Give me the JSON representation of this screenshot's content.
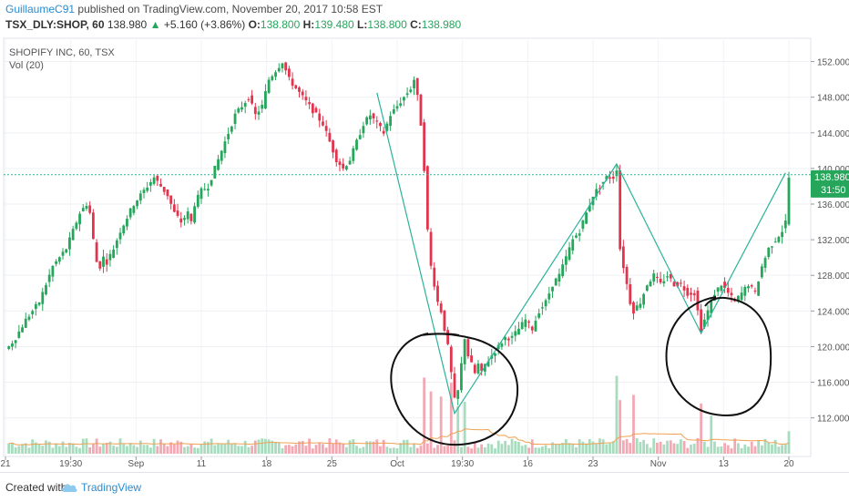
{
  "header": {
    "author": "GuillaumeC91",
    "published": "published on TradingView.com, November 20, 2017 10:58 EST",
    "symbol": "TSX_DLY:SHOP, 60",
    "last": "138.980",
    "change_arrow": "▲",
    "change": "+5.160 (+3.86%)",
    "o_label": "O:",
    "o_value": "138.800",
    "h_label": "H:",
    "h_value": "139.480",
    "l_label": "L:",
    "l_value": "138.800",
    "c_label": "C:",
    "c_value": "138.980"
  },
  "legend": {
    "series": "SHOPIFY INC, 60, TSX",
    "volume": "Vol (20)"
  },
  "price_badge": {
    "price": "138.980",
    "countdown": "31:50"
  },
  "footer": {
    "created_with": "Created with",
    "brand": "TradingView",
    "logo_icon": "tradingview-cloud-icon"
  },
  "colors": {
    "up": "#26a65b",
    "down": "#e2344d",
    "trend": "#2ab39a",
    "badge": "#26a65b",
    "volume_ma": "#f0a050"
  },
  "chart_data": {
    "type": "candlestick",
    "title": "SHOPIFY INC, 60, TSX",
    "ylim": [
      109,
      154
    ],
    "y_ticks": [
      "152.000",
      "148.000",
      "144.000",
      "140.000",
      "136.000",
      "132.000",
      "128.000",
      "124.000",
      "120.000",
      "116.000",
      "112.000"
    ],
    "x_tick_labels": [
      "21",
      "19:30",
      "Sep",
      "11",
      "18",
      "25",
      "Oct",
      "19:30",
      "16",
      "23",
      "Nov",
      "13",
      "20"
    ],
    "last_price": 138.98,
    "price_path": [
      [
        0,
        119.5
      ],
      [
        3,
        121
      ],
      [
        6,
        123
      ],
      [
        8,
        124
      ],
      [
        10,
        125
      ],
      [
        12,
        127
      ],
      [
        14,
        129
      ],
      [
        16,
        130
      ],
      [
        18,
        131
      ],
      [
        20,
        133
      ],
      [
        22,
        135
      ],
      [
        24,
        136
      ],
      [
        25,
        135
      ],
      [
        26,
        132
      ],
      [
        27,
        129.5
      ],
      [
        28,
        129
      ],
      [
        29,
        130
      ],
      [
        30,
        129.5
      ],
      [
        32,
        131
      ],
      [
        34,
        133
      ],
      [
        36,
        134.5
      ],
      [
        38,
        136
      ],
      [
        40,
        137
      ],
      [
        42,
        138
      ],
      [
        44,
        139
      ],
      [
        46,
        138
      ],
      [
        48,
        137
      ],
      [
        50,
        135
      ],
      [
        52,
        134
      ],
      [
        54,
        135
      ],
      [
        55,
        134
      ],
      [
        56,
        136
      ],
      [
        58,
        137.5
      ],
      [
        60,
        138
      ],
      [
        62,
        140
      ],
      [
        64,
        142
      ],
      [
        66,
        144
      ],
      [
        68,
        146
      ],
      [
        70,
        147
      ],
      [
        72,
        148
      ],
      [
        74,
        146
      ],
      [
        76,
        147
      ],
      [
        78,
        150
      ],
      [
        80,
        151
      ],
      [
        82,
        152
      ],
      [
        83,
        151
      ],
      [
        84,
        150
      ],
      [
        86,
        149
      ],
      [
        88,
        148
      ],
      [
        90,
        147
      ],
      [
        92,
        146
      ],
      [
        94,
        145
      ],
      [
        96,
        143
      ],
      [
        98,
        141
      ],
      [
        100,
        140
      ],
      [
        102,
        141
      ],
      [
        104,
        143
      ],
      [
        106,
        145
      ],
      [
        108,
        146
      ],
      [
        110,
        145
      ],
      [
        112,
        144
      ],
      [
        114,
        146
      ],
      [
        116,
        147
      ],
      [
        118,
        148
      ],
      [
        120,
        149
      ],
      [
        121,
        150
      ],
      [
        122,
        148
      ],
      [
        123,
        145
      ],
      [
        124,
        140
      ],
      [
        125,
        133
      ],
      [
        126,
        129
      ],
      [
        127,
        127
      ],
      [
        128,
        125
      ],
      [
        129,
        124
      ],
      [
        130,
        122
      ],
      [
        131,
        120
      ],
      [
        132,
        117
      ],
      [
        133,
        114
      ],
      [
        134,
        115
      ],
      [
        135,
        118
      ],
      [
        136,
        121
      ],
      [
        137,
        119
      ],
      [
        138,
        118
      ],
      [
        139,
        117
      ],
      [
        140,
        118
      ],
      [
        141,
        117
      ],
      [
        142,
        118
      ],
      [
        144,
        119
      ],
      [
        146,
        120
      ],
      [
        148,
        121
      ],
      [
        150,
        121
      ],
      [
        152,
        122
      ],
      [
        154,
        123
      ],
      [
        156,
        122
      ],
      [
        158,
        124
      ],
      [
        160,
        125
      ],
      [
        162,
        127
      ],
      [
        164,
        128
      ],
      [
        166,
        130
      ],
      [
        168,
        132
      ],
      [
        170,
        133
      ],
      [
        172,
        135
      ],
      [
        174,
        137
      ],
      [
        176,
        138
      ],
      [
        178,
        139
      ],
      [
        180,
        139
      ],
      [
        181,
        140
      ],
      [
        182,
        131
      ],
      [
        183,
        129
      ],
      [
        184,
        127
      ],
      [
        185,
        125
      ],
      [
        186,
        124
      ],
      [
        188,
        125
      ],
      [
        190,
        127
      ],
      [
        192,
        128
      ],
      [
        194,
        127
      ],
      [
        196,
        128
      ],
      [
        198,
        127
      ],
      [
        200,
        127
      ],
      [
        202,
        126
      ],
      [
        204,
        126
      ],
      [
        206,
        122
      ],
      [
        207,
        123
      ],
      [
        208,
        124
      ],
      [
        210,
        126
      ],
      [
        212,
        127
      ],
      [
        214,
        126
      ],
      [
        216,
        125
      ],
      [
        218,
        126
      ],
      [
        220,
        127
      ],
      [
        222,
        126
      ],
      [
        224,
        129
      ],
      [
        226,
        131
      ],
      [
        228,
        132
      ],
      [
        230,
        133
      ],
      [
        231,
        134
      ],
      [
        232,
        138.98
      ]
    ],
    "volume_spikes": [
      {
        "bar": 124,
        "volume": 88
      },
      {
        "bar": 126,
        "volume": 72
      },
      {
        "bar": 129,
        "volume": 66
      },
      {
        "bar": 132,
        "volume": 82
      },
      {
        "bar": 134,
        "volume": 55
      },
      {
        "bar": 136,
        "volume": 60
      },
      {
        "bar": 181,
        "volume": 90
      },
      {
        "bar": 182,
        "volume": 62
      },
      {
        "bar": 186,
        "volume": 68
      },
      {
        "bar": 206,
        "volume": 58
      },
      {
        "bar": 209,
        "volume": 44
      },
      {
        "bar": 232,
        "volume": 26
      }
    ],
    "trend_line": [
      [
        110,
        148.5
      ],
      [
        133,
        112.5
      ],
      [
        181,
        140.5
      ],
      [
        206,
        121.5
      ],
      [
        231,
        139.5
      ]
    ],
    "horizontal_line": 139.3
  }
}
